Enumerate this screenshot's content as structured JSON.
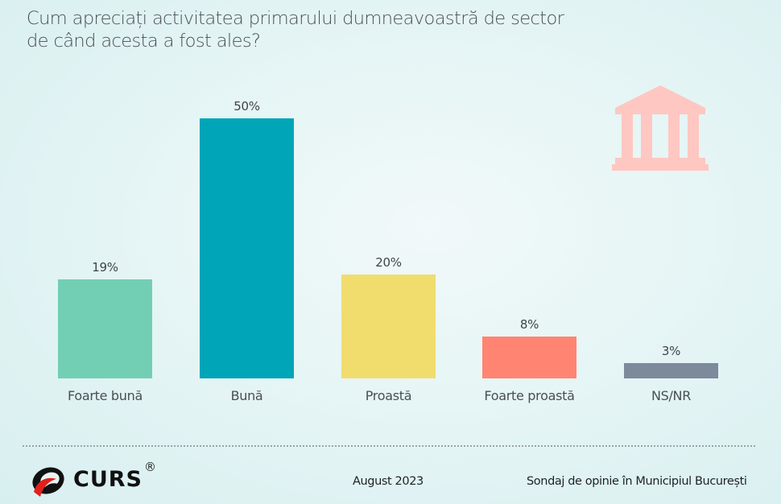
{
  "title_line1": "Cum apreciați activitatea primarului dumneavoastră de sector",
  "title_line2": "de când acesta a fost ales?",
  "chart_data": {
    "type": "bar",
    "title": "Cum apreciați activitatea primarului dumneavoastră de sector de când acesta a fost ales?",
    "categories": [
      "Foarte bună",
      "Bună",
      "Proastă",
      "Foarte proastă",
      "NS/NR"
    ],
    "values": [
      19,
      50,
      20,
      8,
      3
    ],
    "value_labels": [
      "19%",
      "50%",
      "20%",
      "8%",
      "3%"
    ],
    "colors": [
      "#72cfb3",
      "#00a5b8",
      "#f1dc6e",
      "#ff8572",
      "#7d8a9c"
    ],
    "xlabel": "",
    "ylabel": "",
    "ylim": [
      0,
      50
    ],
    "grid": false,
    "legend": "none"
  },
  "footer": {
    "brand": "CURS",
    "registered": "®",
    "date": "August 2023",
    "source": "Sondaj de opinie în Municipiul București"
  },
  "icons": {
    "decor": "bank-building-icon",
    "decor_color": "#ffc7c2"
  }
}
